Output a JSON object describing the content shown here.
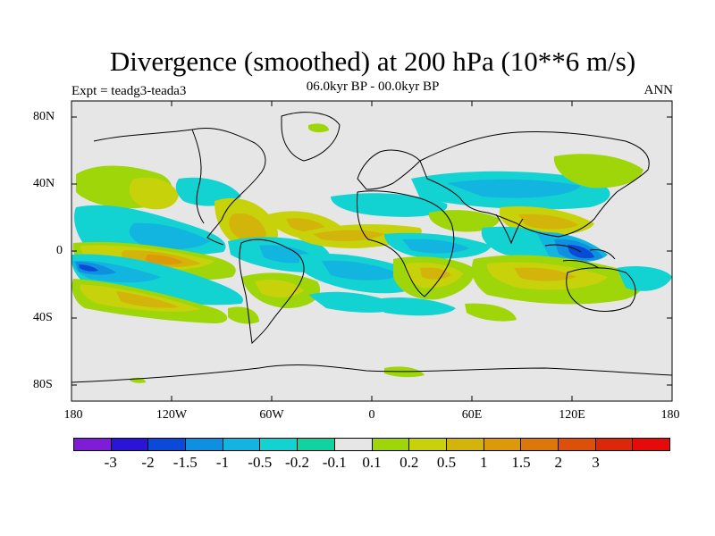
{
  "title": "Divergence (smoothed) at 200 hPa (10**6 m/s)",
  "subtitle": "06.0kyr BP - 00.0kyr BP",
  "experiment_label": "Expt = teadg3-teada3",
  "period_label": "ANN",
  "lat_axis": [
    "80N",
    "40N",
    "0",
    "40S",
    "80S"
  ],
  "lon_axis": [
    "180",
    "120W",
    "60W",
    "0",
    "60E",
    "120E",
    "180"
  ],
  "colorbar": {
    "colors": [
      "#7f1cd6",
      "#2b14d6",
      "#0a4ad6",
      "#0f8fe0",
      "#12b4e0",
      "#12d2d2",
      "#12d2a0",
      "#e6e6e6",
      "#9ed60a",
      "#c8d20a",
      "#d2b40a",
      "#dc9a0a",
      "#dc780a",
      "#dc500a",
      "#dc280a",
      "#e60a0a"
    ],
    "labels": [
      "-3",
      "-2",
      "-1.5",
      "-1",
      "-0.5",
      "-0.2",
      "-0.1",
      "0.1",
      "0.2",
      "0.5",
      "1",
      "1.5",
      "2",
      "3"
    ]
  },
  "colors": {
    "ocean_bg": "#e6e6e6",
    "coast": "#000000",
    "green_pos": "#9ed60a",
    "yellow_pos": "#c8d20a",
    "orange_pos": "#d2b40a",
    "dark_orange_pos": "#dc9a0a",
    "teal_neg": "#12d2d2",
    "cyan_neg": "#12b4e0",
    "blue_neg": "#0f8fe0",
    "deep_blue_neg": "#0a4ad6"
  }
}
